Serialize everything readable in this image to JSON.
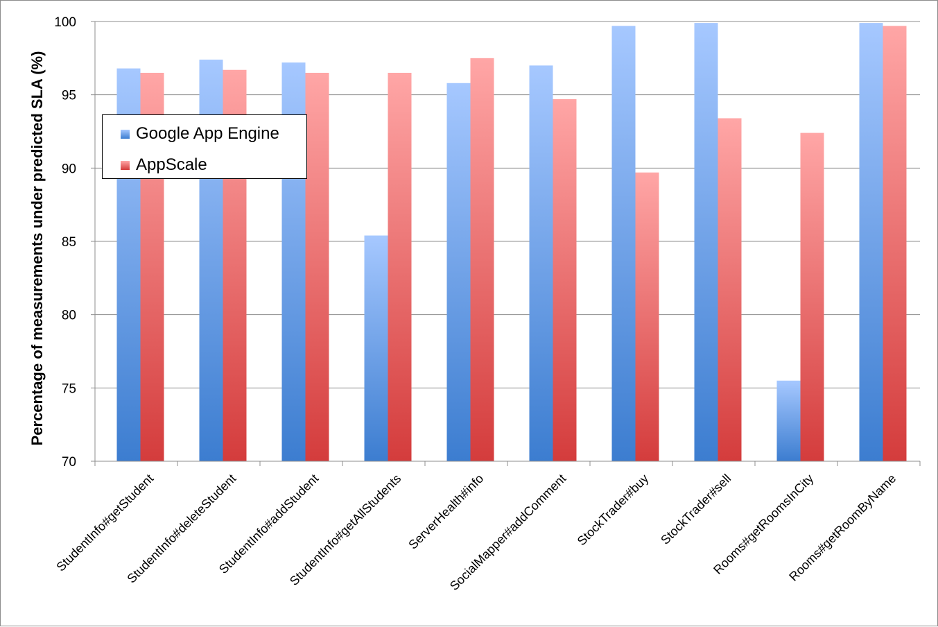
{
  "chart_data": {
    "type": "bar",
    "title": "",
    "xlabel": "",
    "ylabel": "Percentage of measurements under predicted SLA (%)",
    "ylim": [
      70,
      100
    ],
    "yticks": [
      70,
      75,
      80,
      85,
      90,
      95,
      100
    ],
    "grid": true,
    "legend_position": "upper-left",
    "categories": [
      "StudentInfo#getStudent",
      "StudentInfo#deleteStudent",
      "StudentInfo#addStudent",
      "StudentInfo#getAllStudents",
      "ServerHealth#info",
      "SocialMapper#addComment",
      "StockTrader#buy",
      "StockTrader#sell",
      "Rooms#getRoomsInCity",
      "Rooms#getRoomByName"
    ],
    "series": [
      {
        "name": "Google App Engine",
        "color": "#4a86d8",
        "values": [
          96.8,
          97.4,
          97.2,
          85.4,
          95.8,
          97.0,
          99.7,
          99.9,
          75.5,
          99.9
        ]
      },
      {
        "name": "AppScale",
        "color": "#d84a4a",
        "values": [
          96.5,
          96.7,
          96.5,
          96.5,
          97.5,
          94.7,
          89.7,
          93.4,
          92.4,
          99.7
        ]
      }
    ]
  }
}
